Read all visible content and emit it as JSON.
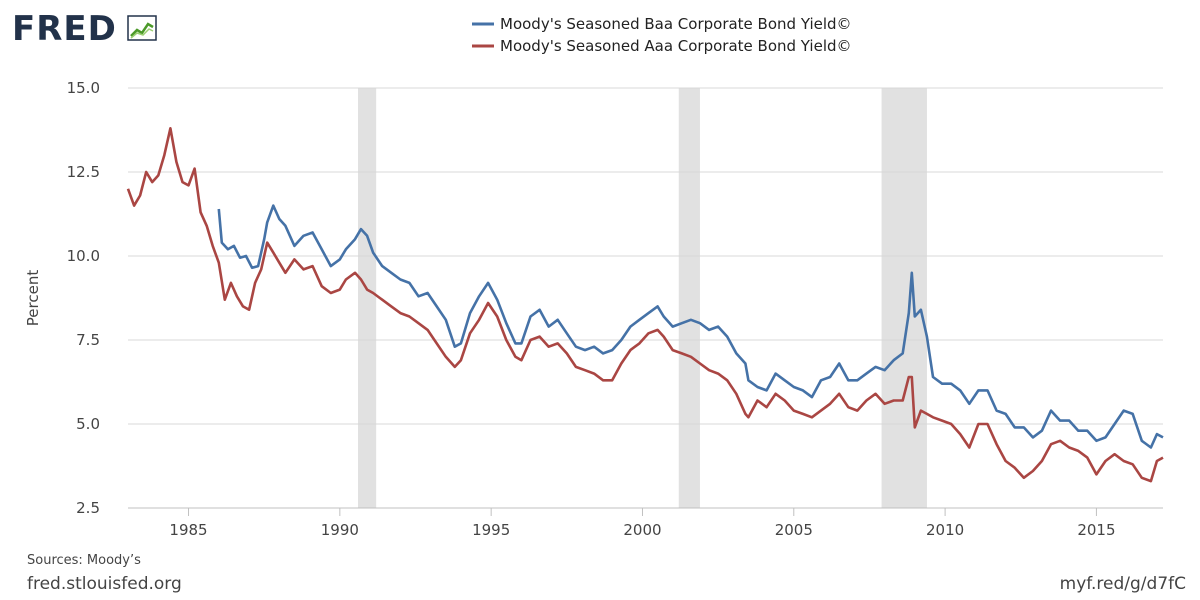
{
  "header": {
    "logo_text": "FRED",
    "logo_icon": "chart-logo-icon"
  },
  "colors": {
    "baa": "#4572a7",
    "aaa": "#aa4643",
    "recession": "#e1e1e1",
    "grid": "#d8d8d8",
    "logo": "#22324a",
    "logo_accent": "#4c9a2a"
  },
  "footer": {
    "sources": "Sources: Moody’s",
    "site": "fred.stlouisfed.org",
    "short_url": "myf.red/g/d7fC"
  },
  "chart_data": {
    "type": "line",
    "title": "",
    "xlabel": "",
    "ylabel": "Percent",
    "xlim": [
      1983.0,
      2017.2
    ],
    "ylim": [
      2.5,
      15.0
    ],
    "grid": true,
    "legend": "top-center",
    "x_ticks": [
      "1985",
      "1990",
      "1995",
      "2000",
      "2005",
      "2010",
      "2015"
    ],
    "y_ticks": [
      "2.5",
      "5.0",
      "7.5",
      "10.0",
      "12.5",
      "15.0"
    ],
    "recessions": [
      [
        1990.6,
        1991.2
      ],
      [
        2001.2,
        2001.9
      ],
      [
        2007.9,
        2009.4
      ]
    ],
    "series": [
      {
        "name": "Moody's Seasoned Baa Corporate Bond Yield©",
        "color": "#4572a7",
        "x": [
          1986.0,
          1986.1,
          1986.3,
          1986.5,
          1986.7,
          1986.9,
          1987.1,
          1987.3,
          1987.5,
          1987.6,
          1987.8,
          1988.0,
          1988.2,
          1988.5,
          1988.8,
          1989.1,
          1989.4,
          1989.7,
          1990.0,
          1990.2,
          1990.5,
          1990.7,
          1990.9,
          1991.1,
          1991.4,
          1991.7,
          1992.0,
          1992.3,
          1992.6,
          1992.9,
          1993.2,
          1993.5,
          1993.8,
          1994.0,
          1994.3,
          1994.6,
          1994.9,
          1995.2,
          1995.5,
          1995.8,
          1996.0,
          1996.3,
          1996.6,
          1996.9,
          1997.2,
          1997.5,
          1997.8,
          1998.1,
          1998.4,
          1998.7,
          1999.0,
          1999.3,
          1999.6,
          1999.9,
          2000.2,
          2000.5,
          2000.7,
          2001.0,
          2001.3,
          2001.6,
          2001.9,
          2002.2,
          2002.5,
          2002.8,
          2003.1,
          2003.4,
          2003.5,
          2003.8,
          2004.1,
          2004.4,
          2004.7,
          2005.0,
          2005.3,
          2005.6,
          2005.9,
          2006.2,
          2006.5,
          2006.8,
          2007.1,
          2007.4,
          2007.7,
          2008.0,
          2008.3,
          2008.6,
          2008.8,
          2008.9,
          2009.0,
          2009.2,
          2009.4,
          2009.6,
          2009.9,
          2010.2,
          2010.5,
          2010.8,
          2011.1,
          2011.4,
          2011.7,
          2012.0,
          2012.3,
          2012.6,
          2012.9,
          2013.2,
          2013.5,
          2013.8,
          2014.1,
          2014.4,
          2014.7,
          2015.0,
          2015.3,
          2015.6,
          2015.9,
          2016.2,
          2016.5,
          2016.8,
          2017.0,
          2017.2
        ],
        "y": [
          11.4,
          10.4,
          10.2,
          10.3,
          9.95,
          10.0,
          9.65,
          9.7,
          10.5,
          11.0,
          11.5,
          11.1,
          10.9,
          10.3,
          10.6,
          10.7,
          10.2,
          9.7,
          9.9,
          10.2,
          10.5,
          10.8,
          10.6,
          10.1,
          9.7,
          9.5,
          9.3,
          9.2,
          8.8,
          8.9,
          8.5,
          8.1,
          7.3,
          7.4,
          8.3,
          8.8,
          9.2,
          8.7,
          8.0,
          7.4,
          7.4,
          8.2,
          8.4,
          7.9,
          8.1,
          7.7,
          7.3,
          7.2,
          7.3,
          7.1,
          7.2,
          7.5,
          7.9,
          8.1,
          8.3,
          8.5,
          8.2,
          7.9,
          8.0,
          8.1,
          8.0,
          7.8,
          7.9,
          7.6,
          7.1,
          6.8,
          6.3,
          6.1,
          6.0,
          6.5,
          6.3,
          6.1,
          6.0,
          5.8,
          6.3,
          6.4,
          6.8,
          6.3,
          6.3,
          6.5,
          6.7,
          6.6,
          6.9,
          7.1,
          8.3,
          9.5,
          8.2,
          8.4,
          7.6,
          6.4,
          6.2,
          6.2,
          6.0,
          5.6,
          6.0,
          6.0,
          5.4,
          5.3,
          4.9,
          4.9,
          4.6,
          4.8,
          5.4,
          5.1,
          5.1,
          4.8,
          4.8,
          4.5,
          4.6,
          5.0,
          5.4,
          5.3,
          4.5,
          4.3,
          4.7,
          4.6
        ]
      },
      {
        "name": "Moody's Seasoned Aaa Corporate Bond Yield©",
        "color": "#aa4643",
        "x": [
          1983.0,
          1983.2,
          1983.4,
          1983.6,
          1983.8,
          1984.0,
          1984.2,
          1984.4,
          1984.6,
          1984.8,
          1985.0,
          1985.2,
          1985.4,
          1985.6,
          1985.8,
          1986.0,
          1986.2,
          1986.4,
          1986.6,
          1986.8,
          1987.0,
          1987.2,
          1987.4,
          1987.6,
          1987.8,
          1988.0,
          1988.2,
          1988.5,
          1988.8,
          1989.1,
          1989.4,
          1989.7,
          1990.0,
          1990.2,
          1990.5,
          1990.7,
          1990.9,
          1991.1,
          1991.4,
          1991.7,
          1992.0,
          1992.3,
          1992.6,
          1992.9,
          1993.2,
          1993.5,
          1993.8,
          1994.0,
          1994.3,
          1994.6,
          1994.9,
          1995.2,
          1995.5,
          1995.8,
          1996.0,
          1996.3,
          1996.6,
          1996.9,
          1997.2,
          1997.5,
          1997.8,
          1998.1,
          1998.4,
          1998.7,
          1999.0,
          1999.3,
          1999.6,
          1999.9,
          2000.2,
          2000.5,
          2000.7,
          2001.0,
          2001.3,
          2001.6,
          2001.9,
          2002.2,
          2002.5,
          2002.8,
          2003.1,
          2003.4,
          2003.5,
          2003.8,
          2004.1,
          2004.4,
          2004.7,
          2005.0,
          2005.3,
          2005.6,
          2005.9,
          2006.2,
          2006.5,
          2006.8,
          2007.1,
          2007.4,
          2007.7,
          2008.0,
          2008.3,
          2008.6,
          2008.8,
          2008.9,
          2009.0,
          2009.2,
          2009.4,
          2009.6,
          2009.9,
          2010.2,
          2010.5,
          2010.8,
          2011.1,
          2011.4,
          2011.7,
          2012.0,
          2012.3,
          2012.6,
          2012.9,
          2013.2,
          2013.5,
          2013.8,
          2014.1,
          2014.4,
          2014.7,
          2015.0,
          2015.3,
          2015.6,
          2015.9,
          2016.2,
          2016.5,
          2016.8,
          2017.0,
          2017.2
        ],
        "y": [
          12.0,
          11.5,
          11.8,
          12.5,
          12.2,
          12.4,
          13.0,
          13.8,
          12.8,
          12.2,
          12.1,
          12.6,
          11.3,
          10.9,
          10.3,
          9.8,
          8.7,
          9.2,
          8.8,
          8.5,
          8.4,
          9.2,
          9.6,
          10.4,
          10.1,
          9.8,
          9.5,
          9.9,
          9.6,
          9.7,
          9.1,
          8.9,
          9.0,
          9.3,
          9.5,
          9.3,
          9.0,
          8.9,
          8.7,
          8.5,
          8.3,
          8.2,
          8.0,
          7.8,
          7.4,
          7.0,
          6.7,
          6.9,
          7.7,
          8.1,
          8.6,
          8.2,
          7.5,
          7.0,
          6.9,
          7.5,
          7.6,
          7.3,
          7.4,
          7.1,
          6.7,
          6.6,
          6.5,
          6.3,
          6.3,
          6.8,
          7.2,
          7.4,
          7.7,
          7.8,
          7.6,
          7.2,
          7.1,
          7.0,
          6.8,
          6.6,
          6.5,
          6.3,
          5.9,
          5.3,
          5.2,
          5.7,
          5.5,
          5.9,
          5.7,
          5.4,
          5.3,
          5.2,
          5.4,
          5.6,
          5.9,
          5.5,
          5.4,
          5.7,
          5.9,
          5.6,
          5.7,
          5.7,
          6.4,
          6.4,
          4.9,
          5.4,
          5.3,
          5.2,
          5.1,
          5.0,
          4.7,
          4.3,
          5.0,
          5.0,
          4.4,
          3.9,
          3.7,
          3.4,
          3.6,
          3.9,
          4.4,
          4.5,
          4.3,
          4.2,
          4.0,
          3.5,
          3.9,
          4.1,
          3.9,
          3.8,
          3.4,
          3.3,
          3.9,
          4.0
        ]
      }
    ]
  }
}
